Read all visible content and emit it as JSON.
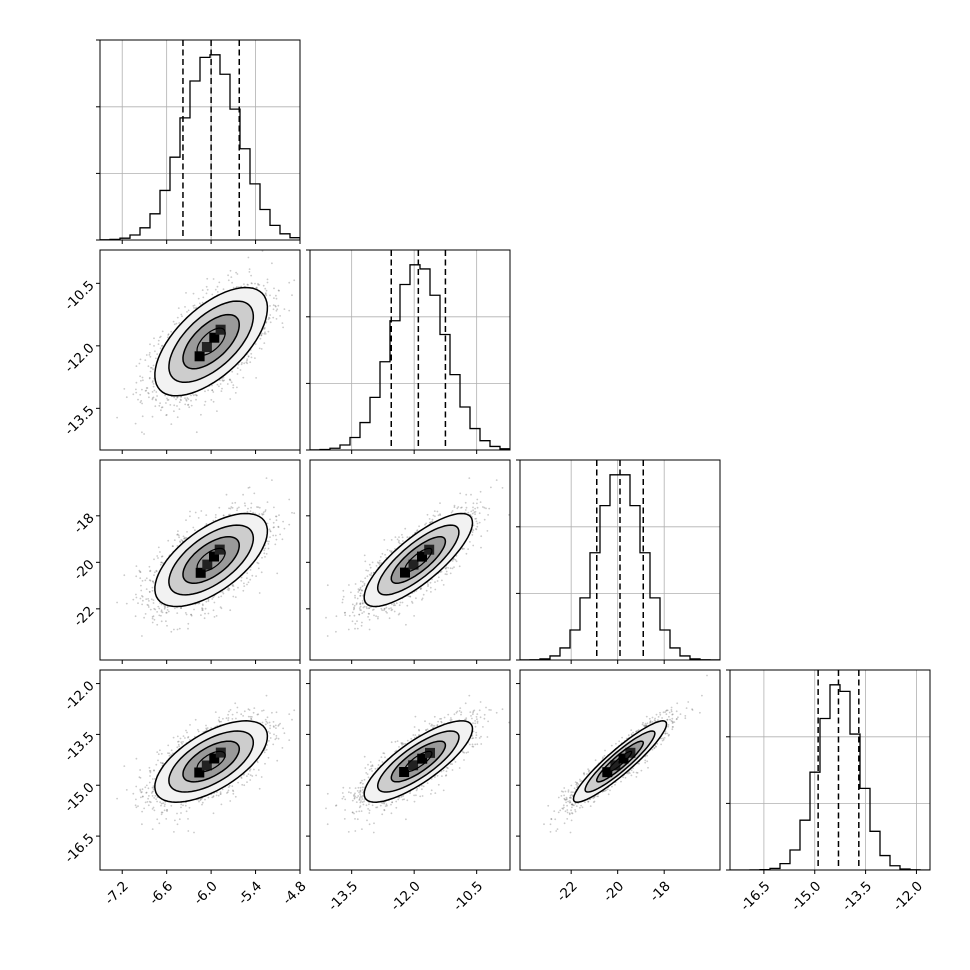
{
  "chart_data": {
    "type": "corner",
    "n_params": 4,
    "title": "",
    "labels": [
      "",
      "",
      "",
      ""
    ],
    "ranges": [
      [
        -7.5,
        -4.8
      ],
      [
        -14.5,
        -9.7
      ],
      [
        -24.2,
        -15.6
      ],
      [
        -17.5,
        -11.6
      ]
    ],
    "ticks": [
      [
        "-7.2",
        "-6.6",
        "-6.0",
        "-5.4",
        "-4.8"
      ],
      [
        "-13.5",
        "-12.0",
        "-10.5"
      ],
      [
        "-22",
        "-20",
        "-18"
      ],
      [
        "-16.5",
        "-15.0",
        "-13.5",
        "-12.0"
      ]
    ],
    "tick_values": [
      [
        -7.2,
        -6.6,
        -6.0,
        -5.4,
        -4.8
      ],
      [
        -13.5,
        -12.0,
        -10.5
      ],
      [
        -22,
        -20,
        -18
      ],
      [
        -16.5,
        -15.0,
        -13.5,
        -12.0
      ]
    ],
    "means": [
      -6.0,
      -11.9,
      -19.9,
      -14.3
    ],
    "stds": [
      0.38,
      0.65,
      1.0,
      0.6
    ],
    "quantiles_1d": [
      [
        -6.38,
        -6.0,
        -5.62
      ],
      [
        -12.55,
        -11.9,
        -11.25
      ],
      [
        -20.9,
        -19.9,
        -18.9
      ],
      [
        -14.9,
        -14.3,
        -13.7
      ]
    ],
    "correlation": [
      [
        1.0,
        0.62,
        0.62,
        0.62
      ],
      [
        0.62,
        1.0,
        0.8,
        0.8
      ],
      [
        0.62,
        0.8,
        1.0,
        0.92
      ],
      [
        0.62,
        0.8,
        0.92,
        1.0
      ]
    ],
    "histogram_bins": 20,
    "grid": true,
    "colors": {
      "line": "#000000",
      "scatter": "#666666",
      "grid": "#b0b0b0"
    }
  }
}
